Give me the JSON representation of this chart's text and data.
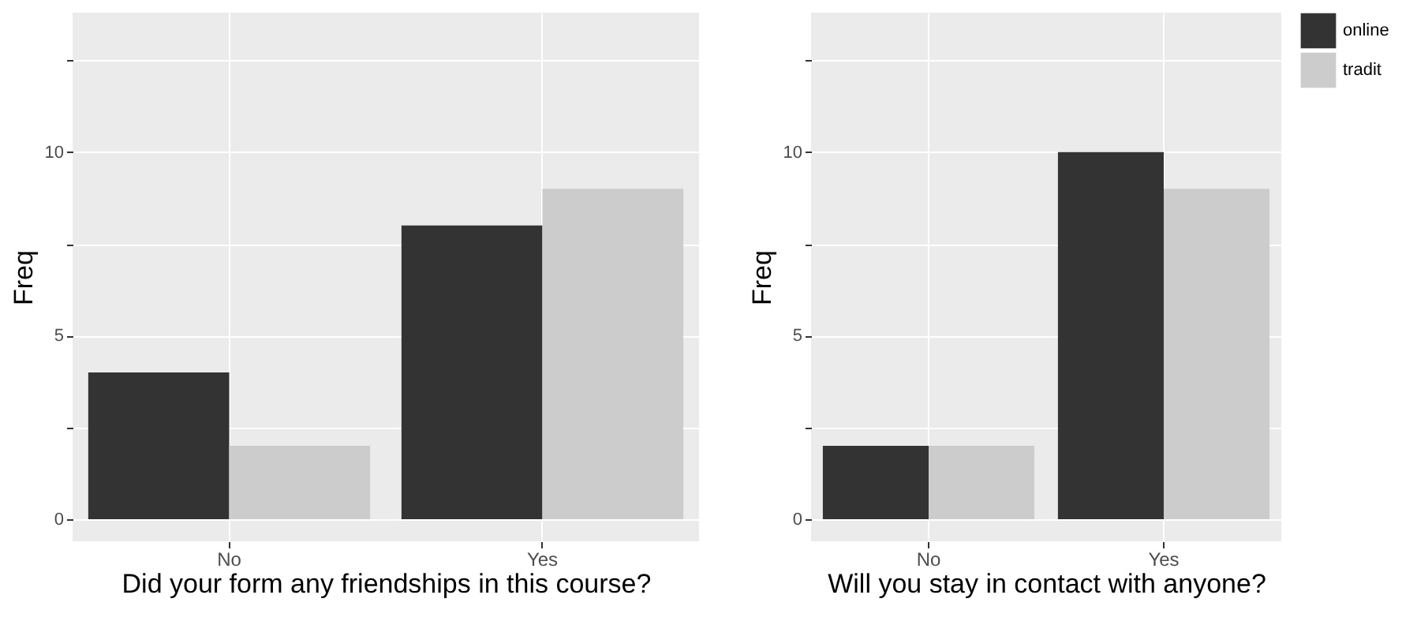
{
  "chart_data": [
    {
      "type": "bar",
      "xlabel": "Did your form any friendships in this course?",
      "ylabel": "Freq",
      "categories": [
        "No",
        "Yes"
      ],
      "series": [
        {
          "color": "#333333",
          "values": [
            4,
            8
          ]
        },
        {
          "color": "#cccccc",
          "values": [
            2,
            9
          ]
        }
      ],
      "ylim": [
        -0.6,
        13.8
      ],
      "yticks": [
        0,
        {
          "value": 2.5,
          "label": null
        },
        5,
        {
          "value": 7.5,
          "label": null
        },
        10,
        {
          "value": 12.5,
          "label": null
        }
      ],
      "grid": true,
      "legend": false
    },
    {
      "type": "bar",
      "xlabel": "Will you stay in contact with anyone?",
      "ylabel": "Freq",
      "categories": [
        "No",
        "Yes"
      ],
      "series": [
        {
          "name": "online",
          "color": "#333333",
          "values": [
            2,
            10
          ]
        },
        {
          "name": "tradit",
          "color": "#cccccc",
          "values": [
            2,
            9
          ]
        }
      ],
      "ylim": [
        -0.6,
        13.8
      ],
      "yticks": [
        0,
        {
          "value": 2.5,
          "label": null
        },
        5,
        {
          "value": 7.5,
          "label": null
        },
        10,
        {
          "value": 12.5,
          "label": null
        }
      ],
      "grid": true,
      "legend": "right"
    }
  ]
}
